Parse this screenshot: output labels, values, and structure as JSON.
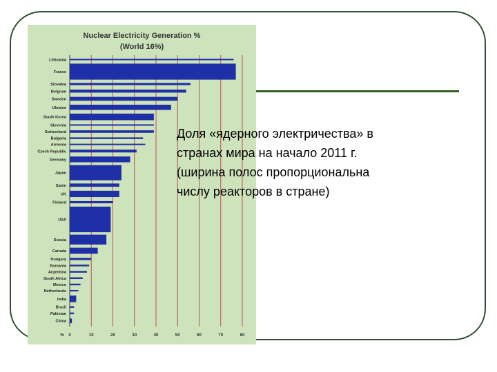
{
  "caption": {
    "lines": [
      "Доля «ядерного электричества» в",
      "странах мира на начало 2011 г.",
      "(ширина полос пропорциональна",
      "числу реакторов в стране)"
    ]
  },
  "chart_data": {
    "type": "bar",
    "orientation": "horizontal",
    "title": "Nuclear Electricity Generation %",
    "subtitle": "(World 16%)",
    "xlabel": "%",
    "xlim": [
      0,
      80
    ],
    "xticks": [
      0,
      10,
      20,
      30,
      40,
      50,
      60,
      70,
      80
    ],
    "grid": true,
    "bar_color": "#1f2fa8",
    "gridline_color": "#c0504d",
    "categories": [
      "Lithuania",
      "France",
      "Slovakia",
      "Belgium",
      "Sweden",
      "Ukraine",
      "South Korea",
      "Slovenia",
      "Switzerland",
      "Bulgaria",
      "Armenia",
      "Czech Republic",
      "Germany",
      "Japan",
      "Spain",
      "UK",
      "Finland",
      "USA",
      "Russia",
      "Canada",
      "Hungary",
      "Romania",
      "Argentina",
      "South Africa",
      "Mexico",
      "Netherlands",
      "India",
      "Brazil",
      "Pakistan",
      "China"
    ],
    "values": [
      76,
      77,
      56,
      54,
      50,
      47,
      39,
      39,
      39,
      34,
      35,
      31,
      28,
      24,
      23,
      23,
      20,
      19,
      17,
      13,
      10,
      9,
      8,
      6,
      5,
      4,
      3,
      2,
      2,
      1
    ],
    "reactors": [
      1,
      58,
      4,
      7,
      10,
      15,
      20,
      1,
      5,
      2,
      1,
      6,
      17,
      54,
      8,
      19,
      4,
      104,
      32,
      18,
      4,
      2,
      2,
      2,
      2,
      1,
      20,
      2,
      2,
      13
    ]
  }
}
